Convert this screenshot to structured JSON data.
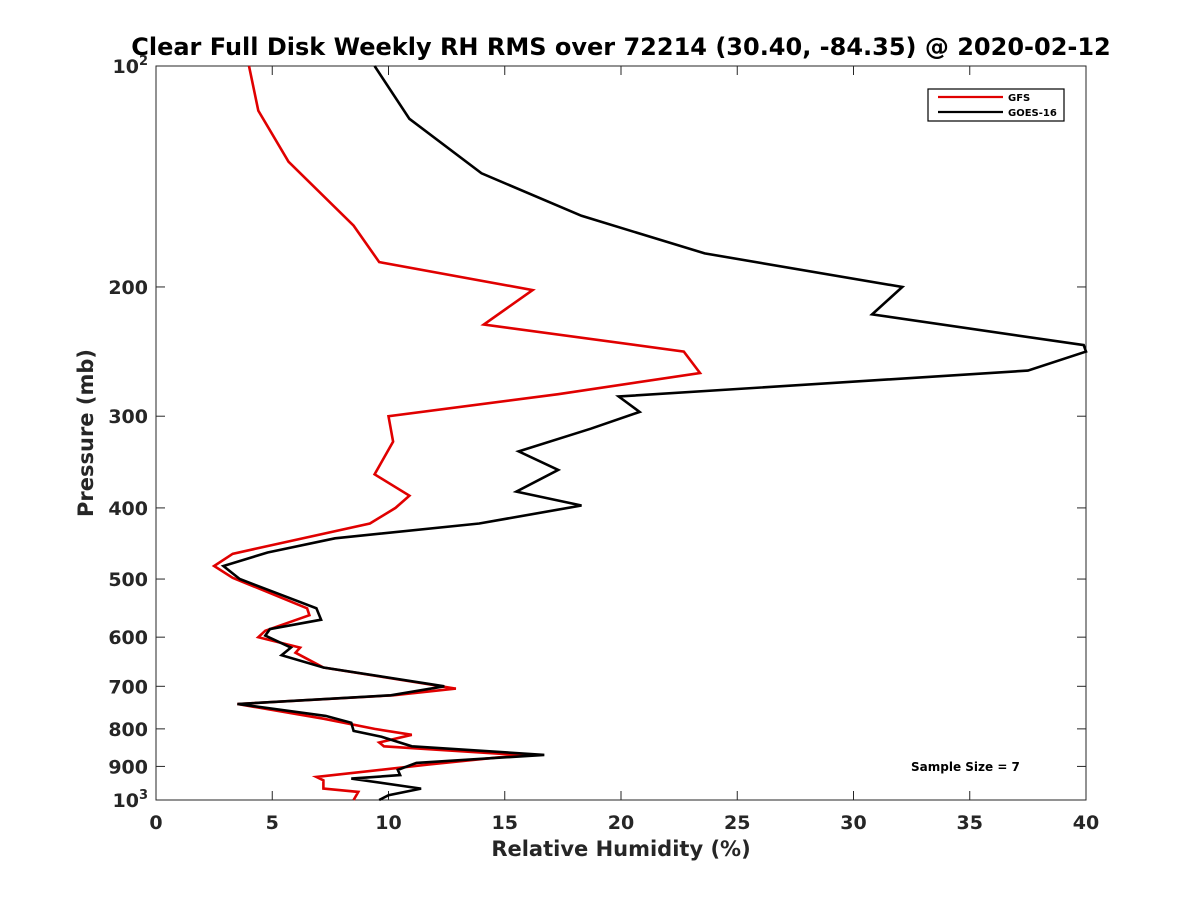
{
  "chart_data": {
    "type": "line",
    "title": "Clear Full Disk Weekly RH RMS over 72214 (30.40, -84.35) @ 2020-02-12",
    "xlabel": "Relative Humidity (%)",
    "ylabel": "Pressure (mb)",
    "xlim": [
      0,
      40
    ],
    "ylim": [
      100,
      1000
    ],
    "yscale": "log",
    "y_reversed": true,
    "grid": false,
    "x_ticks": [
      0,
      5,
      10,
      15,
      20,
      25,
      30,
      35,
      40
    ],
    "x_tick_labels": [
      "0",
      "5",
      "10",
      "15",
      "20",
      "25",
      "30",
      "35",
      "40"
    ],
    "y_ticks": [
      {
        "value": 100,
        "base": "10",
        "exp": "2"
      },
      {
        "value": 200,
        "label": "200"
      },
      {
        "value": 300,
        "label": "300"
      },
      {
        "value": 400,
        "label": "400"
      },
      {
        "value": 500,
        "label": "500"
      },
      {
        "value": 600,
        "label": "600"
      },
      {
        "value": 700,
        "label": "700"
      },
      {
        "value": 800,
        "label": "800"
      },
      {
        "value": 900,
        "label": "900"
      },
      {
        "value": 1000,
        "base": "10",
        "exp": "3"
      }
    ],
    "legend_position": "top-right",
    "series": [
      {
        "name": "GFS",
        "color": "#e00000",
        "x": [
          4.0,
          4.4,
          5.7,
          8.5,
          9.6,
          16.2,
          14.1,
          22.7,
          23.4,
          17.3,
          10.0,
          10.2,
          9.4,
          10.9,
          10.3,
          9.2,
          3.3,
          2.5,
          3.3,
          6.5,
          6.6,
          4.7,
          4.4,
          6.2,
          6.0,
          7.2,
          12.9,
          10.2,
          3.5,
          7.2,
          9.4,
          11.0,
          9.6,
          9.8,
          16.0,
          14.7,
          11.7,
          6.9,
          7.2,
          7.2,
          8.7,
          8.5
        ],
        "y": [
          100,
          115,
          135,
          165,
          185,
          202,
          225,
          245,
          262,
          280,
          300,
          325,
          360,
          385,
          400,
          420,
          462,
          480,
          498,
          548,
          560,
          588,
          600,
          620,
          630,
          660,
          705,
          720,
          740,
          775,
          800,
          815,
          835,
          845,
          870,
          875,
          895,
          930,
          940,
          965,
          975,
          1000
        ]
      },
      {
        "name": "GOES-16",
        "color": "#000000",
        "x": [
          9.4,
          10.9,
          14.0,
          18.3,
          23.6,
          32.1,
          30.8,
          39.9,
          40.0,
          37.5,
          19.9,
          20.8,
          18.7,
          15.6,
          17.3,
          15.5,
          18.3,
          13.9,
          7.7,
          4.8,
          2.9,
          3.6,
          6.9,
          7.1,
          4.9,
          4.7,
          5.8,
          5.4,
          7.2,
          12.4,
          10.1,
          3.5,
          7.3,
          8.4,
          8.5,
          9.7,
          11.0,
          16.7,
          11.2,
          10.4,
          10.5,
          8.4,
          11.4,
          10.0,
          9.6
        ],
        "y": [
          100,
          118,
          140,
          160,
          180,
          200,
          218,
          240,
          245,
          260,
          282,
          296,
          312,
          335,
          355,
          380,
          397,
          420,
          440,
          460,
          480,
          500,
          548,
          568,
          585,
          597,
          620,
          635,
          660,
          700,
          720,
          740,
          768,
          785,
          805,
          820,
          845,
          868,
          890,
          910,
          925,
          935,
          965,
          985,
          1000
        ]
      }
    ],
    "annotation": "Sample Size = 7"
  }
}
